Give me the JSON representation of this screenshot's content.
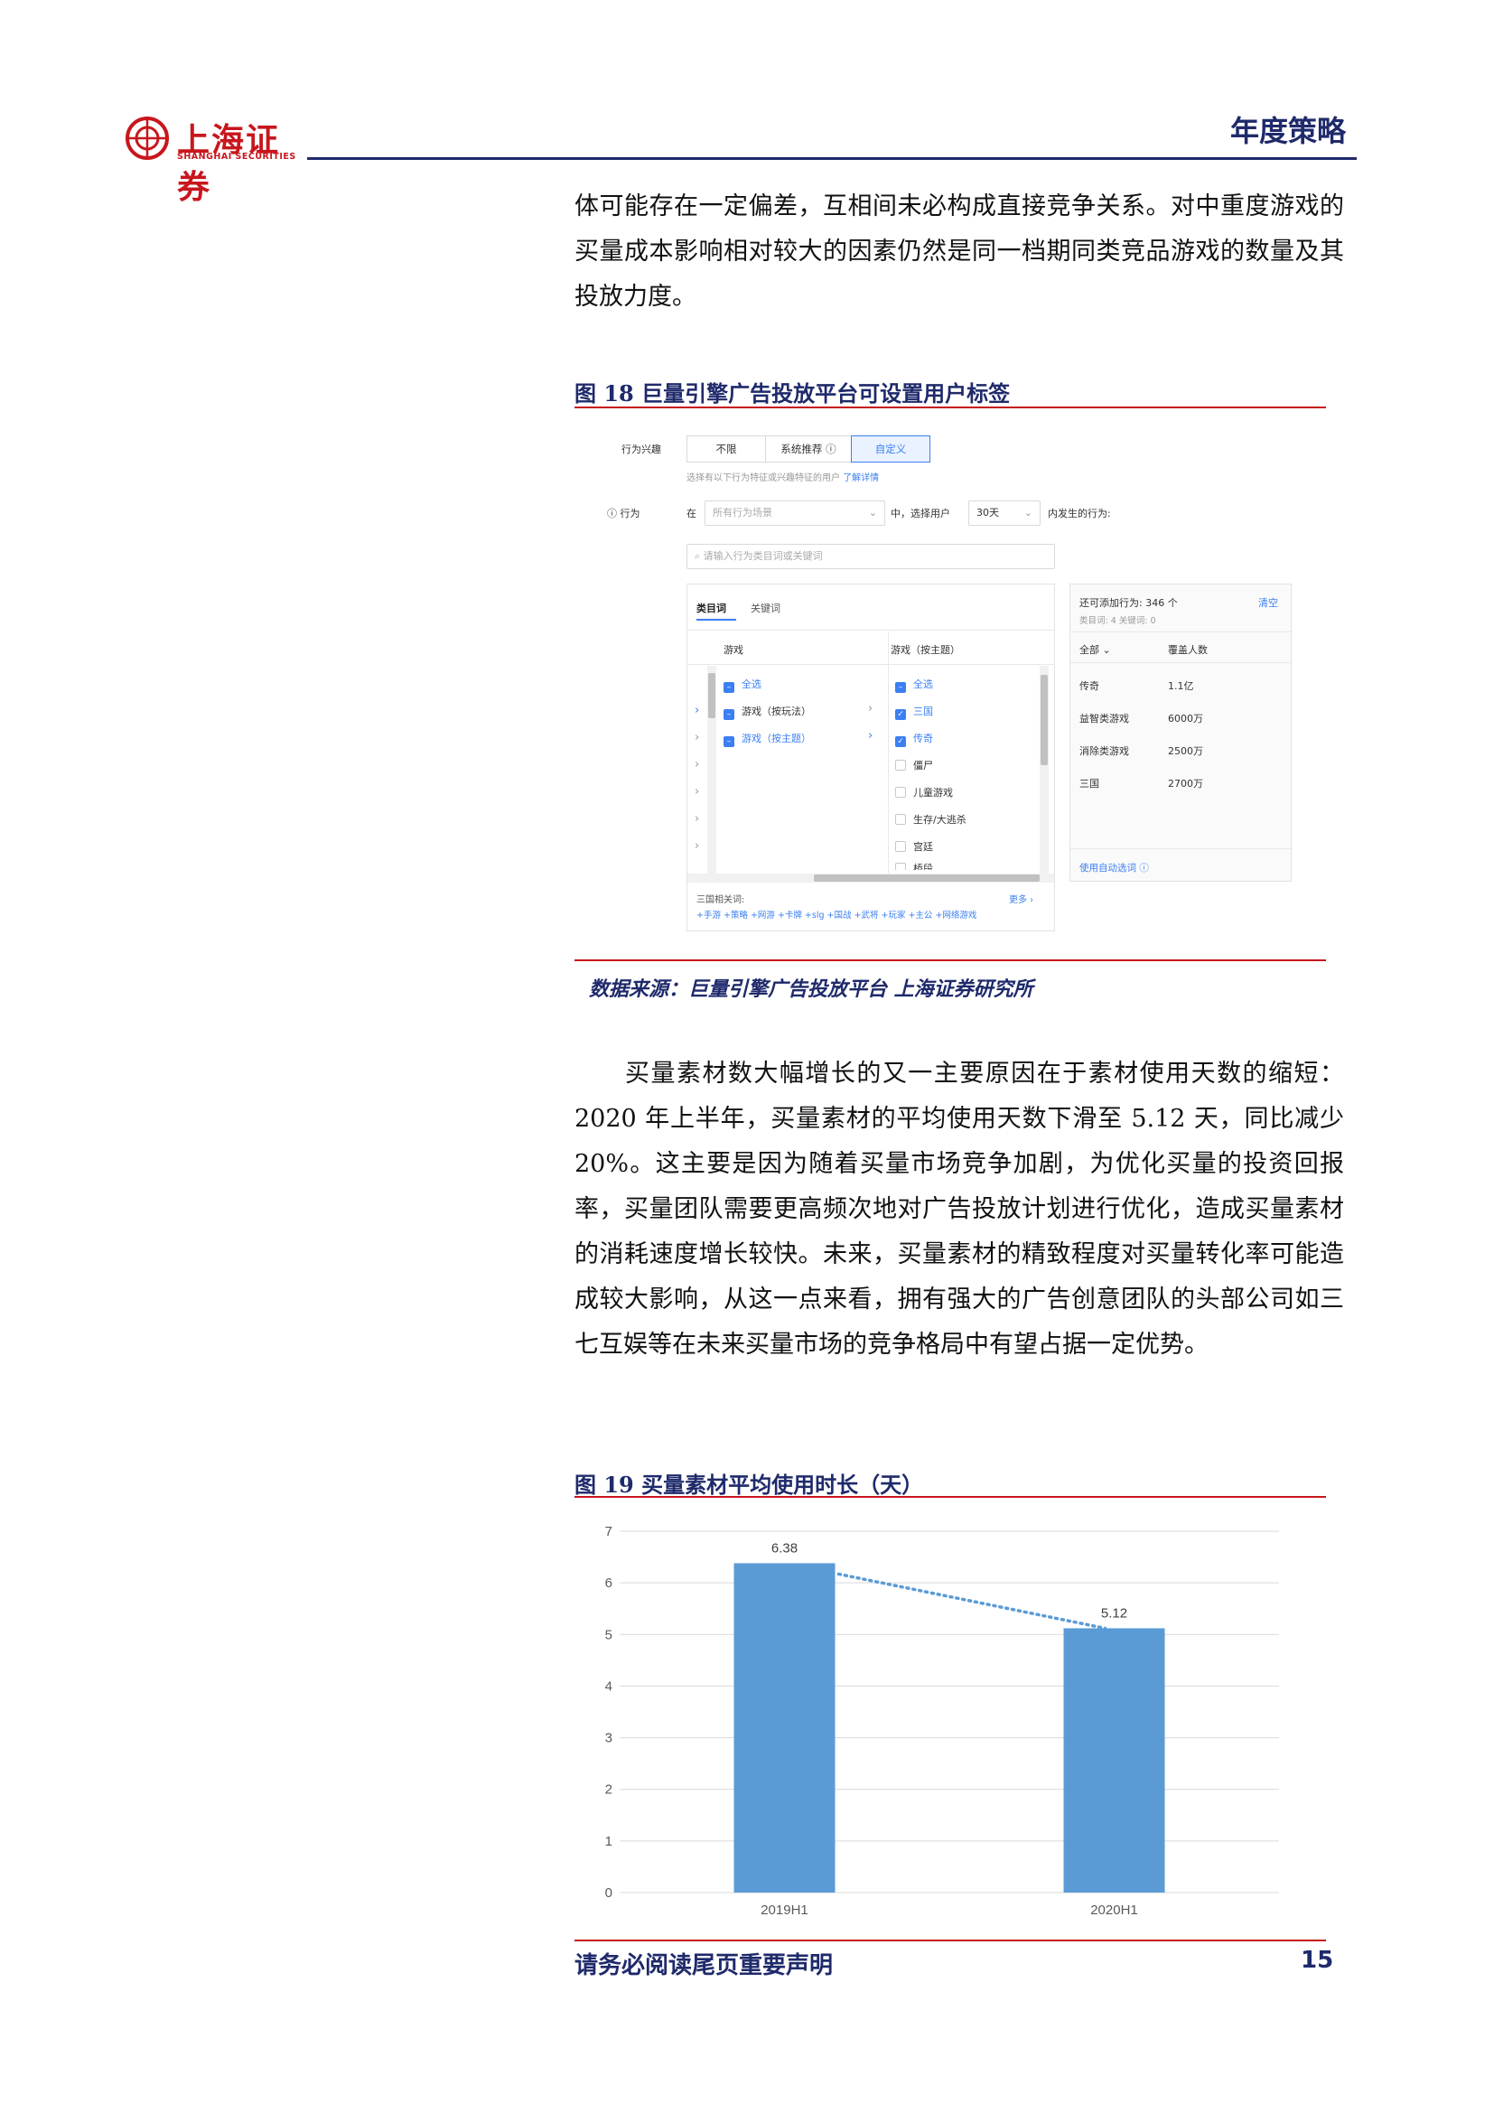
{
  "header": {
    "logo_cn": "上海证券",
    "logo_en": "SHANGHAI SECURITIES",
    "title": "年度策略"
  },
  "para1": "体可能存在一定偏差，互相间未必构成直接竞争关系。对中重度游戏的买量成本影响相对较大的因素仍然是同一档期同类竞品游戏的数量及其投放力度。",
  "fig18": {
    "title": "图 18 巨量引擎广告投放平台可设置用户标签",
    "source": "数据来源：巨量引擎广告投放平台 上海证券研究所",
    "screenshot": {
      "label_interest": "行为兴趣",
      "seg_options": [
        "不限",
        "系统推荐 ⓘ",
        "自定义"
      ],
      "hint": "选择有以下行为特征或兴趣特征的用户",
      "hint_link": "了解详情",
      "label_behavior": "ⓘ 行为",
      "at": "在",
      "scene_placeholder": "所有行为场景",
      "mid_text": "中，选择用户",
      "days_value": "30天",
      "tail_text": "内发生的行为:",
      "search_placeholder": "请输入行为类目词或关键词",
      "tab_category": "类目词",
      "tab_keyword": "关键词",
      "col1_header": "游戏",
      "col2_header": "游戏（按主题）",
      "col1_items": [
        "全选",
        "游戏（按玩法）",
        "游戏（按主题）"
      ],
      "col2_items": [
        "全选",
        "三国",
        "传奇",
        "僵尸",
        "儿童游戏",
        "生存/大逃杀",
        "宫廷",
        "桥段"
      ],
      "related_label": "三国相关词:",
      "more_link": "更多 ›",
      "related_words": "+手游  +策略  +网游  +卡牌  +slg  +国战  +武将  +玩家  +主公  +网络游戏",
      "right_title": "还可添加行为: 346 个",
      "right_clear": "清空",
      "right_sub": "类目词: 4    关键词: 0",
      "right_col1": "全部 ⌄",
      "right_col2": "覆盖人数",
      "right_rows": [
        {
          "name": "传奇",
          "value": "1.1亿"
        },
        {
          "name": "益智类游戏",
          "value": "6000万"
        },
        {
          "name": "消除类游戏",
          "value": "2500万"
        },
        {
          "name": "三国",
          "value": "2700万"
        }
      ],
      "auto_select": "使用自动选词 ⓘ"
    }
  },
  "para2": "买量素材数大幅增长的又一主要原因在于素材使用天数的缩短：2020 年上半年，买量素材的平均使用天数下滑至 5.12 天，同比减少 20%。这主要是因为随着买量市场竞争加剧，为优化买量的投资回报率，买量团队需要更高频次地对广告投放计划进行优化，造成买量素材的消耗速度增长较快。未来，买量素材的精致程度对买量转化率可能造成较大影响，从这一点来看，拥有强大的广告创意团队的头部公司如三七互娱等在未来买量市场的竞争格局中有望占据一定优势。",
  "fig19": {
    "title": "图 19 买量素材平均使用时长（天）"
  },
  "chart_data": {
    "type": "bar",
    "title": "",
    "categories": [
      "2019H1",
      "2020H1"
    ],
    "values": [
      6.38,
      5.12
    ],
    "data_labels": [
      "6.38",
      "5.12"
    ],
    "ylim": [
      0,
      7
    ],
    "yticks": [
      0,
      1,
      2,
      3,
      4,
      5,
      6,
      7
    ],
    "trendline": "dotted",
    "bar_color": "#5b9bd5",
    "grid": true
  },
  "footer": {
    "notice": "请务必阅读尾页重要声明",
    "page": "15"
  }
}
